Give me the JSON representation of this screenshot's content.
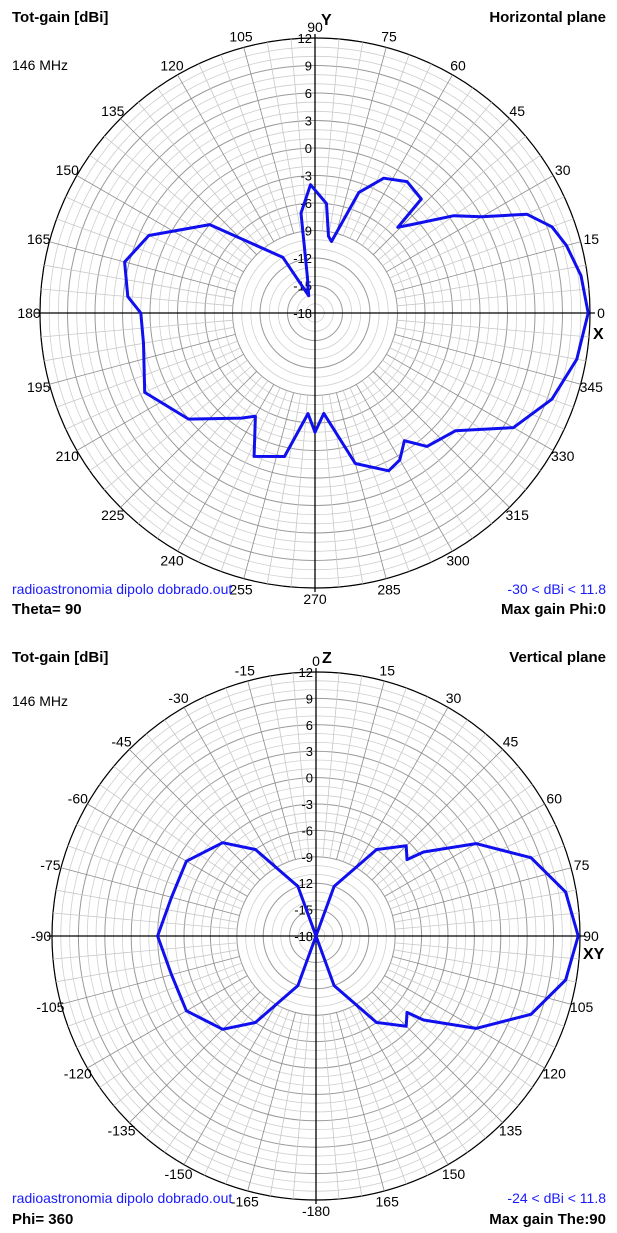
{
  "chart_data": [
    {
      "type": "polar",
      "title": "Horizontal plane",
      "quantity": "Tot-gain [dBi]",
      "frequency": "146 MHz",
      "file": "radioastronomia dipolo dobrado.out",
      "cut": "Theta= 90",
      "max_gain": "Max gain Phi:0",
      "range": "-30 < dBi < 11.8",
      "axis_y": "Y",
      "axis_x": "X",
      "radial_ticks": [
        "12",
        "9",
        "6",
        "3",
        "0",
        "-3",
        "-6",
        "-9",
        "-12",
        "-15",
        "-18"
      ],
      "angle_labels": [
        {
          "deg": 0,
          "text": "0"
        },
        {
          "deg": 15,
          "text": "15"
        },
        {
          "deg": 30,
          "text": "30"
        },
        {
          "deg": 45,
          "text": "45"
        },
        {
          "deg": 60,
          "text": "60"
        },
        {
          "deg": 75,
          "text": "75"
        },
        {
          "deg": 90,
          "text": "90"
        },
        {
          "deg": 105,
          "text": "105"
        },
        {
          "deg": 120,
          "text": "120"
        },
        {
          "deg": 135,
          "text": "135"
        },
        {
          "deg": 150,
          "text": "150"
        },
        {
          "deg": 165,
          "text": "165"
        },
        {
          "deg": 180,
          "text": "180"
        },
        {
          "deg": 195,
          "text": "195"
        },
        {
          "deg": 210,
          "text": "210"
        },
        {
          "deg": 225,
          "text": "225"
        },
        {
          "deg": 240,
          "text": "240"
        },
        {
          "deg": 255,
          "text": "255"
        },
        {
          "deg": 270,
          "text": "270"
        },
        {
          "deg": 285,
          "text": "285"
        },
        {
          "deg": 300,
          "text": "300"
        },
        {
          "deg": 315,
          "text": "315"
        },
        {
          "deg": 330,
          "text": "330"
        },
        {
          "deg": 345,
          "text": "345"
        }
      ],
      "series": [
        {
          "color": "#1010ee",
          "points": [
            {
              "phi": 0,
              "dbi": 11.8
            },
            {
              "phi": 8,
              "dbi": 11.3
            },
            {
              "phi": 15,
              "dbi": 10.4
            },
            {
              "phi": 20,
              "dbi": 9.5
            },
            {
              "phi": 25,
              "dbi": 7.5
            },
            {
              "phi": 30,
              "dbi": 3.0
            },
            {
              "phi": 35,
              "dbi": 0.5
            },
            {
              "phi": 42,
              "dbi": -3.5
            },
            {
              "phi": 46,
              "dbi": -5.0
            },
            {
              "phi": 47,
              "dbi": -1.0
            },
            {
              "phi": 55,
              "dbi": -0.5
            },
            {
              "phi": 63,
              "dbi": -1.5
            },
            {
              "phi": 70,
              "dbi": -4.0
            },
            {
              "phi": 77,
              "dbi": -10.0
            },
            {
              "phi": 80,
              "dbi": -9.5
            },
            {
              "phi": 84,
              "dbi": -6.0
            },
            {
              "phi": 92,
              "dbi": -4.0
            },
            {
              "phi": 98,
              "dbi": -7.0
            },
            {
              "phi": 102,
              "dbi": -14.0
            },
            {
              "phi": 110,
              "dbi": -16.0
            },
            {
              "phi": 120,
              "dbi": -11.0
            },
            {
              "phi": 140,
              "dbi": -3.0
            },
            {
              "phi": 155,
              "dbi": 2.0
            },
            {
              "phi": 165,
              "dbi": 3.5
            },
            {
              "phi": 175,
              "dbi": 2.5
            },
            {
              "phi": 180,
              "dbi": 1.0
            },
            {
              "phi": 190,
              "dbi": 1.0
            },
            {
              "phi": 205,
              "dbi": 2.5
            },
            {
              "phi": 220,
              "dbi": 0.0
            },
            {
              "phi": 235,
              "dbi": -4.0
            },
            {
              "phi": 240,
              "dbi": -5.0
            },
            {
              "phi": 247,
              "dbi": -1.0
            },
            {
              "phi": 258,
              "dbi": -2.0
            },
            {
              "phi": 266,
              "dbi": -7.0
            },
            {
              "phi": 270,
              "dbi": -5.0
            },
            {
              "phi": 275,
              "dbi": -7.0
            },
            {
              "phi": 285,
              "dbi": -1.0
            },
            {
              "phi": 295,
              "dbi": 1.0
            },
            {
              "phi": 300,
              "dbi": 0.5
            },
            {
              "phi": 305,
              "dbi": -1.0
            },
            {
              "phi": 310,
              "dbi": 1.0
            },
            {
              "phi": 320,
              "dbi": 2.0
            },
            {
              "phi": 330,
              "dbi": 7.0
            },
            {
              "phi": 340,
              "dbi": 9.5
            },
            {
              "phi": 350,
              "dbi": 11.0
            },
            {
              "phi": 360,
              "dbi": 11.8
            }
          ]
        }
      ]
    },
    {
      "type": "polar",
      "title": "Vertical plane",
      "quantity": "Tot-gain [dBi]",
      "frequency": "146 MHz",
      "file": "radioastronomia dipolo dobrado.out",
      "cut": "Phi= 360",
      "max_gain": "Max gain The:90",
      "range": "-24 < dBi < 11.8",
      "axis_y": "Z",
      "axis_x": "XY",
      "radial_ticks": [
        "12",
        "9",
        "6",
        "3",
        "0",
        "-3",
        "-6",
        "-9",
        "-12",
        "-15",
        "-18"
      ],
      "angle_labels": [
        {
          "theta": 0,
          "text": "0"
        },
        {
          "theta": 15,
          "text": "15"
        },
        {
          "theta": 30,
          "text": "30"
        },
        {
          "theta": 45,
          "text": "45"
        },
        {
          "theta": 60,
          "text": "60"
        },
        {
          "theta": 75,
          "text": "75"
        },
        {
          "theta": 90,
          "text": "90"
        },
        {
          "theta": 105,
          "text": "105"
        },
        {
          "theta": 120,
          "text": "120"
        },
        {
          "theta": 135,
          "text": "135"
        },
        {
          "theta": 150,
          "text": "150"
        },
        {
          "theta": 165,
          "text": "165"
        },
        {
          "theta": 180,
          "text": "-180"
        },
        {
          "theta": 195,
          "text": "-165"
        },
        {
          "theta": 210,
          "text": "-150"
        },
        {
          "theta": 225,
          "text": "-135"
        },
        {
          "theta": 240,
          "text": "-120"
        },
        {
          "theta": 255,
          "text": "-105"
        },
        {
          "theta": 270,
          "text": "-90"
        },
        {
          "theta": 285,
          "text": "-75"
        },
        {
          "theta": 300,
          "text": "-60"
        },
        {
          "theta": 315,
          "text": "-45"
        },
        {
          "theta": 330,
          "text": "-30"
        },
        {
          "theta": 345,
          "text": "-15"
        }
      ],
      "series": [
        {
          "color": "#1010ee",
          "points": [
            {
              "theta": 0,
              "dbi": -18
            },
            {
              "theta": 20,
              "dbi": -12
            },
            {
              "theta": 35,
              "dbi": -6
            },
            {
              "theta": 45,
              "dbi": -3.5
            },
            {
              "theta": 50,
              "dbi": -4.5
            },
            {
              "theta": 52,
              "dbi": -2.5
            },
            {
              "theta": 60,
              "dbi": 3
            },
            {
              "theta": 70,
              "dbi": 8
            },
            {
              "theta": 80,
              "dbi": 10.8
            },
            {
              "theta": 90,
              "dbi": 11.8
            },
            {
              "theta": 100,
              "dbi": 10.8
            },
            {
              "theta": 110,
              "dbi": 8
            },
            {
              "theta": 120,
              "dbi": 3
            },
            {
              "theta": 128,
              "dbi": -2.5
            },
            {
              "theta": 130,
              "dbi": -4.5
            },
            {
              "theta": 135,
              "dbi": -3.5
            },
            {
              "theta": 145,
              "dbi": -6
            },
            {
              "theta": 160,
              "dbi": -12
            },
            {
              "theta": 180,
              "dbi": -18
            },
            {
              "theta": 200,
              "dbi": -12
            },
            {
              "theta": 215,
              "dbi": -6
            },
            {
              "theta": 225,
              "dbi": -3
            },
            {
              "theta": 240,
              "dbi": -1
            },
            {
              "theta": 255,
              "dbi": -1
            },
            {
              "theta": 270,
              "dbi": 0
            },
            {
              "theta": 285,
              "dbi": -1
            },
            {
              "theta": 300,
              "dbi": -1
            },
            {
              "theta": 315,
              "dbi": -3
            },
            {
              "theta": 325,
              "dbi": -6
            },
            {
              "theta": 340,
              "dbi": -12
            },
            {
              "theta": 360,
              "dbi": -18
            }
          ]
        }
      ]
    }
  ]
}
